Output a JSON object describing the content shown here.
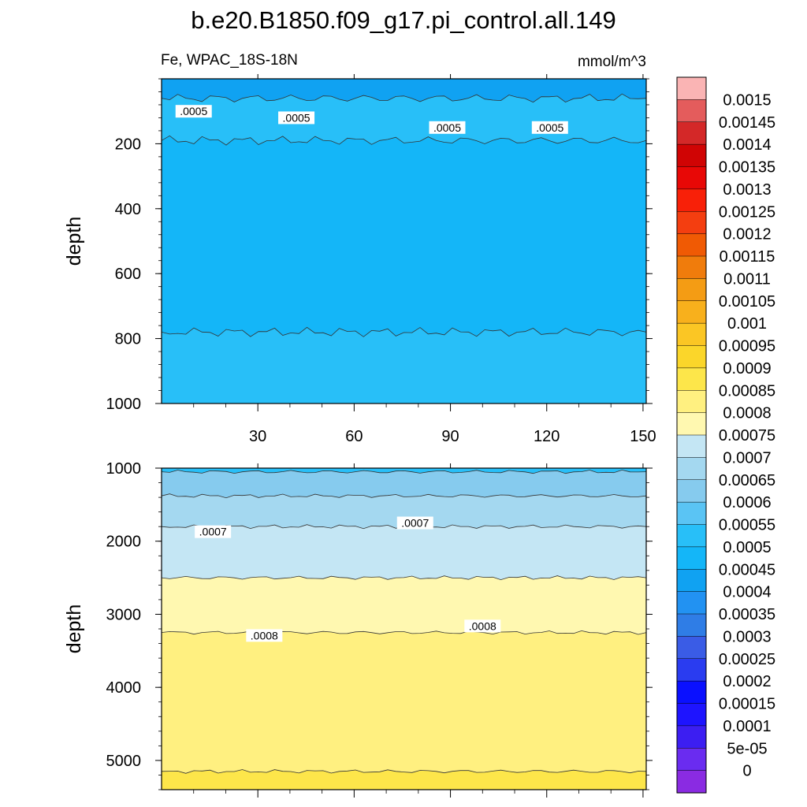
{
  "figure": {
    "title": "b.e20.B1850.f09_g17.pi_control.all.149",
    "left_string": "Fe, WPAC_18S-18N",
    "right_string": "mmol/m^3"
  },
  "colors": {
    "level_fills": [
      "#8a2be2",
      "#6a2cf0",
      "#3c1ef2",
      "#1e14ff",
      "#0a10ff",
      "#2a3cf0",
      "#3a5ce6",
      "#2f7de6",
      "#2292f2",
      "#10a2f2",
      "#14b6f8",
      "#28bff8",
      "#5ac4f4",
      "#86cbee",
      "#a4d8f0",
      "#c4e6f4",
      "#fff8b0",
      "#fff080",
      "#fde64a",
      "#fbd62a",
      "#fbc624",
      "#f8b01c",
      "#f49c14",
      "#f07c0c",
      "#f05a04",
      "#f43e10",
      "#f82008",
      "#e80806",
      "#d00404",
      "#d42828",
      "#e45c5c",
      "#fab4b4"
    ]
  },
  "chart_data": [
    {
      "type": "heatmap",
      "subtype": "filled-contour",
      "panel": "upper",
      "title": "",
      "xlabel": "",
      "ylabel": "depth",
      "xlim": [
        0,
        151
      ],
      "ylim": [
        0,
        1000
      ],
      "y_reversed": true,
      "xticks": [
        30,
        60,
        90,
        120,
        150
      ],
      "yticks": [
        200,
        400,
        600,
        800,
        1000
      ],
      "bands": [
        {
          "from_depth": 0,
          "to_depth": 60,
          "min": 0.0004,
          "max": 0.00045
        },
        {
          "from_depth": 60,
          "to_depth": 190,
          "min": 0.0005,
          "max": 0.00055
        },
        {
          "from_depth": 190,
          "to_depth": 780,
          "min": 0.00045,
          "max": 0.0005
        },
        {
          "from_depth": 780,
          "to_depth": 1000,
          "min": 0.0005,
          "max": 0.00055
        }
      ],
      "contour_labels": [
        {
          "x": 10,
          "depth": 100,
          "text": ".0005"
        },
        {
          "x": 42,
          "depth": 120,
          "text": ".0005"
        },
        {
          "x": 89,
          "depth": 150,
          "text": ".0005"
        },
        {
          "x": 121,
          "depth": 150,
          "text": ".0005"
        }
      ]
    },
    {
      "type": "heatmap",
      "subtype": "filled-contour",
      "panel": "lower",
      "title": "",
      "xlabel": "",
      "ylabel": "depth",
      "xlim": [
        0,
        151
      ],
      "ylim": [
        1000,
        5400
      ],
      "y_reversed": true,
      "xticks": [],
      "yticks": [
        1000,
        2000,
        3000,
        4000,
        5000
      ],
      "bands": [
        {
          "from_depth": 1000,
          "to_depth": 1050,
          "min": 0.0005,
          "max": 0.00055
        },
        {
          "from_depth": 1050,
          "to_depth": 1380,
          "min": 0.0006,
          "max": 0.00065
        },
        {
          "from_depth": 1380,
          "to_depth": 1800,
          "min": 0.00065,
          "max": 0.0007
        },
        {
          "from_depth": 1800,
          "to_depth": 2500,
          "min": 0.0007,
          "max": 0.00075
        },
        {
          "from_depth": 2500,
          "to_depth": 3250,
          "min": 0.00075,
          "max": 0.0008
        },
        {
          "from_depth": 3250,
          "to_depth": 5150,
          "min": 0.0008,
          "max": 0.00085
        },
        {
          "from_depth": 5150,
          "to_depth": 5400,
          "min": 0.00085,
          "max": 0.0009
        }
      ],
      "contour_labels": [
        {
          "x": 16,
          "depth": 1870,
          "text": ".0007"
        },
        {
          "x": 79,
          "depth": 1750,
          "text": ".0007"
        },
        {
          "x": 32,
          "depth": 3290,
          "text": ".0008"
        },
        {
          "x": 100,
          "depth": 3160,
          "text": ".0008"
        }
      ]
    }
  ],
  "colorbar": {
    "labels": [
      "0",
      "5e-05",
      "0.0001",
      "0.00015",
      "0.0002",
      "0.00025",
      "0.0003",
      "0.00035",
      "0.0004",
      "0.00045",
      "0.0005",
      "0.00055",
      "0.0006",
      "0.00065",
      "0.0007",
      "0.00075",
      "0.0008",
      "0.00085",
      "0.0009",
      "0.00095",
      "0.001",
      "0.00105",
      "0.0011",
      "0.00115",
      "0.0012",
      "0.00125",
      "0.0013",
      "0.00135",
      "0.0014",
      "0.00145",
      "0.0015"
    ]
  }
}
